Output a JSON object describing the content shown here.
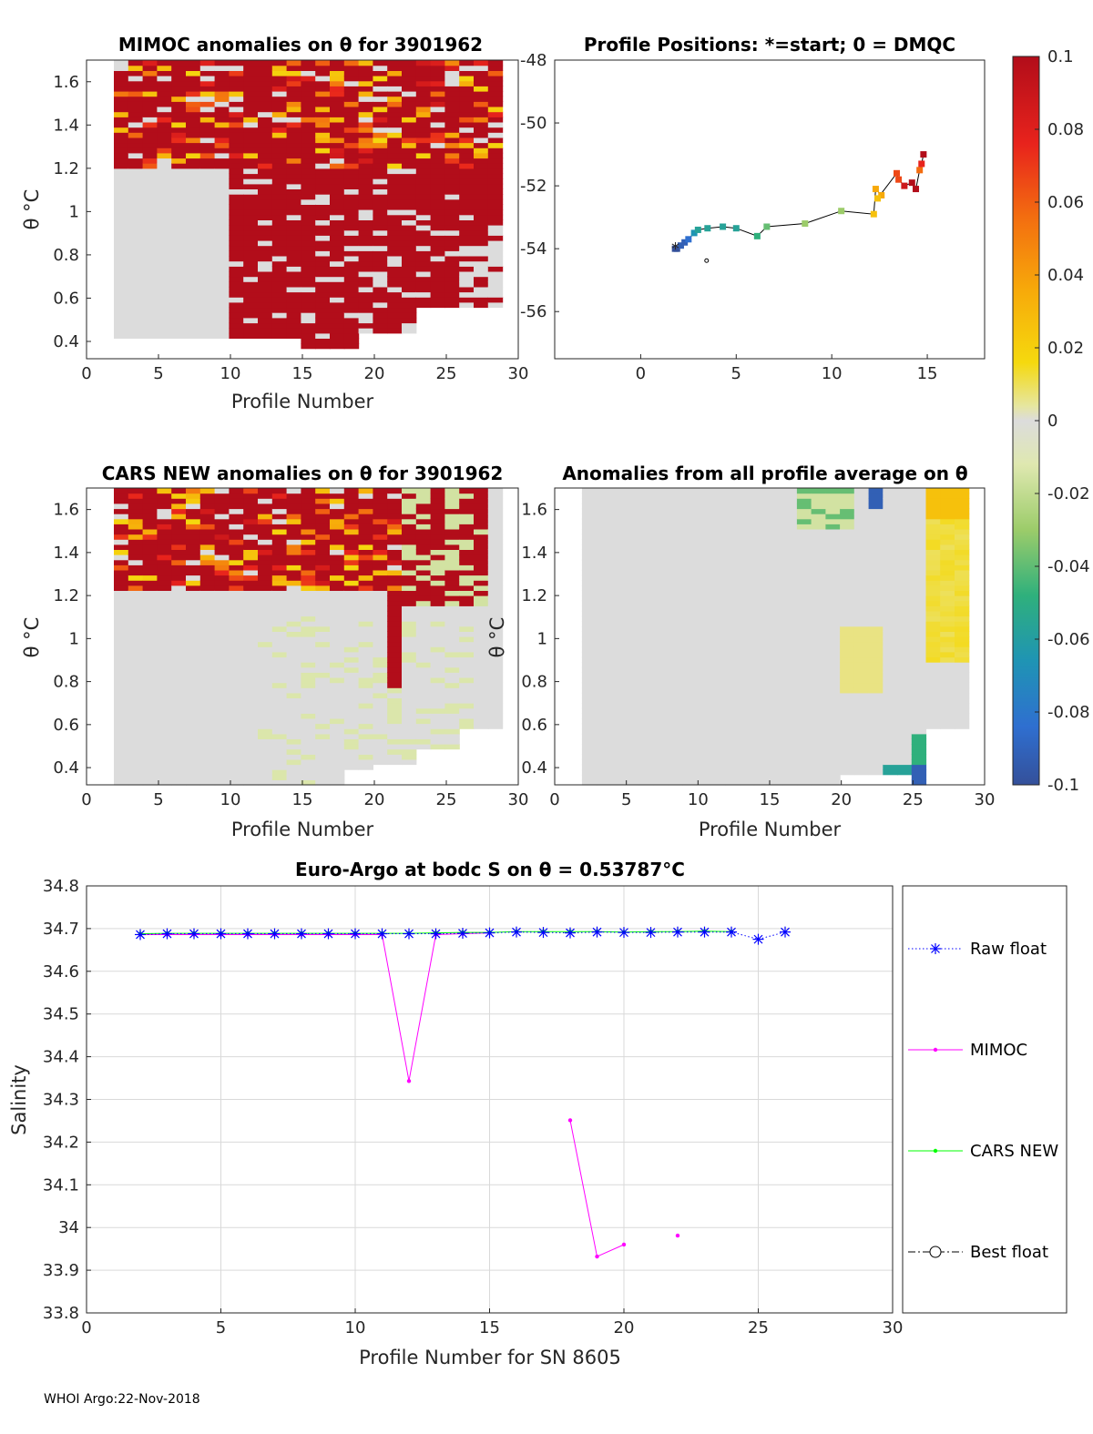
{
  "footer": "WHOI Argo:22-Nov-2018",
  "colorbar": {
    "ticks": [
      "0.1",
      "0.08",
      "0.06",
      "0.04",
      "0.02",
      "0",
      "-0.02",
      "-0.04",
      "-0.06",
      "-0.08",
      "-0.1"
    ],
    "range": [
      -0.1,
      0.1
    ]
  },
  "panels": {
    "mimoc": {
      "title": "MIMOC anomalies on θ  for 3901962",
      "xlabel": "Profile Number",
      "ylabel": "θ °C",
      "xticks": [
        "0",
        "5",
        "10",
        "15",
        "20",
        "25",
        "30"
      ],
      "yticks": [
        "0.4",
        "0.6",
        "0.8",
        "1",
        "1.2",
        "1.4",
        "1.6"
      ]
    },
    "positions": {
      "title": "Profile Positions: *=start; 0 = DMQC",
      "xticks": [
        "0",
        "5",
        "10",
        "15"
      ],
      "yticks": [
        "-48",
        "-50",
        "-52",
        "-54",
        "-56"
      ]
    },
    "cars": {
      "title": "CARS NEW anomalies on θ for 3901962",
      "xlabel": "Profile Number",
      "ylabel": "θ °C",
      "xticks": [
        "0",
        "5",
        "10",
        "15",
        "20",
        "25",
        "30"
      ],
      "yticks": [
        "0.4",
        "0.6",
        "0.8",
        "1",
        "1.2",
        "1.4",
        "1.6"
      ]
    },
    "average": {
      "title": "Anomalies from all profile average on θ",
      "xlabel": "Profile Number",
      "ylabel": "θ °C",
      "xticks": [
        "0",
        "5",
        "10",
        "15",
        "20",
        "25",
        "30"
      ],
      "yticks": [
        "0.4",
        "0.6",
        "0.8",
        "1",
        "1.2",
        "1.4",
        "1.6"
      ]
    }
  },
  "chart_data": [
    {
      "type": "heatmap",
      "id": "mimoc",
      "title": "MIMOC anomalies on θ  for 3901962",
      "xlabel": "Profile Number",
      "ylabel": "θ °C",
      "xlim": [
        0,
        30
      ],
      "ylim": [
        0.32,
        1.7
      ],
      "note": "Mostly positive anomalies (red, >0.1) above ~1.2 °C across all profiles; near-zero grey below for profiles 2-9; red (>0.1) down to ~0.4 for profiles 10-29"
    },
    {
      "type": "line",
      "id": "positions",
      "title": "Profile Positions: *=start; 0 = DMQC",
      "xlim": [
        -4.5,
        18
      ],
      "ylim": [
        -57.5,
        -48
      ],
      "lon": [
        1.8,
        1.9,
        2.1,
        2.3,
        2.5,
        2.8,
        3.0,
        3.5,
        4.3,
        5.0,
        6.1,
        6.6,
        8.6,
        10.5,
        12.2,
        12.3,
        12.6,
        12.4,
        13.4,
        13.5,
        13.8,
        14.2,
        14.4,
        14.6,
        14.7,
        14.8
      ],
      "lat": [
        -54.0,
        -54.0,
        -53.9,
        -53.8,
        -53.7,
        -53.5,
        -53.4,
        -53.35,
        -53.3,
        -53.35,
        -53.6,
        -53.3,
        -53.2,
        -52.8,
        -52.9,
        -52.1,
        -52.3,
        -52.4,
        -51.6,
        -51.8,
        -52.0,
        -51.9,
        -52.1,
        -51.5,
        -51.3,
        -51.0
      ],
      "anomaly": [
        -0.1,
        -0.1,
        -0.09,
        -0.09,
        -0.08,
        -0.06,
        -0.05,
        -0.05,
        -0.05,
        -0.05,
        -0.04,
        -0.03,
        -0.02,
        -0.02,
        0.03,
        0.04,
        0.04,
        0.03,
        0.07,
        0.07,
        0.09,
        0.1,
        0.1,
        0.06,
        0.08,
        0.1
      ]
    },
    {
      "type": "heatmap",
      "id": "cars",
      "title": "CARS NEW anomalies on θ for 3901962",
      "xlabel": "Profile Number",
      "ylabel": "θ °C",
      "xlim": [
        0,
        30
      ],
      "ylim": [
        0.32,
        1.7
      ],
      "note": "Positive anomalies (red) above ~1.2 °C; profile 22 red down to ~0.78; remainder near zero with slight negative tint"
    },
    {
      "type": "heatmap",
      "id": "average",
      "title": "Anomalies from all profile average on θ",
      "xlabel": "Profile Number",
      "ylabel": "θ °C",
      "xlim": [
        0,
        30
      ],
      "ylim": [
        0.32,
        1.7
      ],
      "note": "Mostly near zero; positive (yellow) for profiles 26-29 above ~0.9; negative (blue/green) near 0.35-0.55 for profile 25"
    },
    {
      "type": "line",
      "id": "salinity",
      "title": "Euro-Argo at bodc S on θ = 0.53787°C",
      "xlabel": "Profile Number for SN 8605",
      "ylabel": "Salinity",
      "xlim": [
        0,
        30
      ],
      "ylim": [
        33.8,
        34.8
      ],
      "xticks": [
        "0",
        "5",
        "10",
        "15",
        "20",
        "25",
        "30"
      ],
      "yticks": [
        "33.8",
        "33.9",
        "34",
        "34.1",
        "34.2",
        "34.3",
        "34.4",
        "34.5",
        "34.6",
        "34.7",
        "34.8"
      ],
      "series": [
        {
          "name": "Raw float",
          "color": "#0000ff",
          "style": "dotted-star",
          "x": [
            2,
            3,
            4,
            5,
            6,
            7,
            8,
            9,
            10,
            11,
            12,
            13,
            14,
            15,
            16,
            17,
            18,
            19,
            20,
            21,
            22,
            23,
            24,
            25,
            26
          ],
          "y": [
            34.686,
            34.688,
            34.688,
            34.688,
            34.688,
            34.688,
            34.688,
            34.688,
            34.688,
            34.688,
            34.688,
            34.688,
            34.689,
            34.69,
            34.692,
            34.691,
            34.69,
            34.692,
            34.691,
            34.691,
            34.692,
            34.692,
            34.692,
            34.675,
            34.692
          ]
        },
        {
          "name": "MIMOC",
          "color": "#ff00ff",
          "style": "solid-dot",
          "x": [
            2,
            3,
            4,
            5,
            6,
            7,
            8,
            9,
            10,
            11,
            12,
            13,
            14,
            15,
            16,
            17,
            18,
            19,
            20,
            21,
            22,
            23,
            24,
            25,
            26
          ],
          "y": [
            34.686,
            34.686,
            34.686,
            34.686,
            34.686,
            34.686,
            34.686,
            34.686,
            34.686,
            34.686,
            34.343,
            34.686,
            34.688,
            34.69,
            null,
            null,
            34.251,
            33.932,
            33.96,
            null,
            33.981,
            null,
            null,
            null,
            null
          ]
        },
        {
          "name": "CARS NEW",
          "color": "#00ff00",
          "style": "solid-dot",
          "x": [
            2,
            3,
            4,
            5,
            6,
            7,
            8,
            9,
            10,
            11,
            12,
            13,
            14,
            15,
            16,
            17,
            18,
            19,
            20,
            21,
            22,
            23,
            24
          ],
          "y": [
            34.688,
            34.689,
            34.689,
            34.689,
            34.689,
            34.689,
            34.689,
            34.689,
            34.689,
            34.689,
            34.689,
            34.69,
            34.691,
            34.691,
            34.693,
            34.693,
            34.693,
            34.693,
            34.692,
            34.693,
            34.693,
            34.694,
            34.693
          ]
        },
        {
          "name": "Best float",
          "color": "#000000",
          "style": "dashdot-circle",
          "x": [],
          "y": []
        }
      ]
    }
  ]
}
